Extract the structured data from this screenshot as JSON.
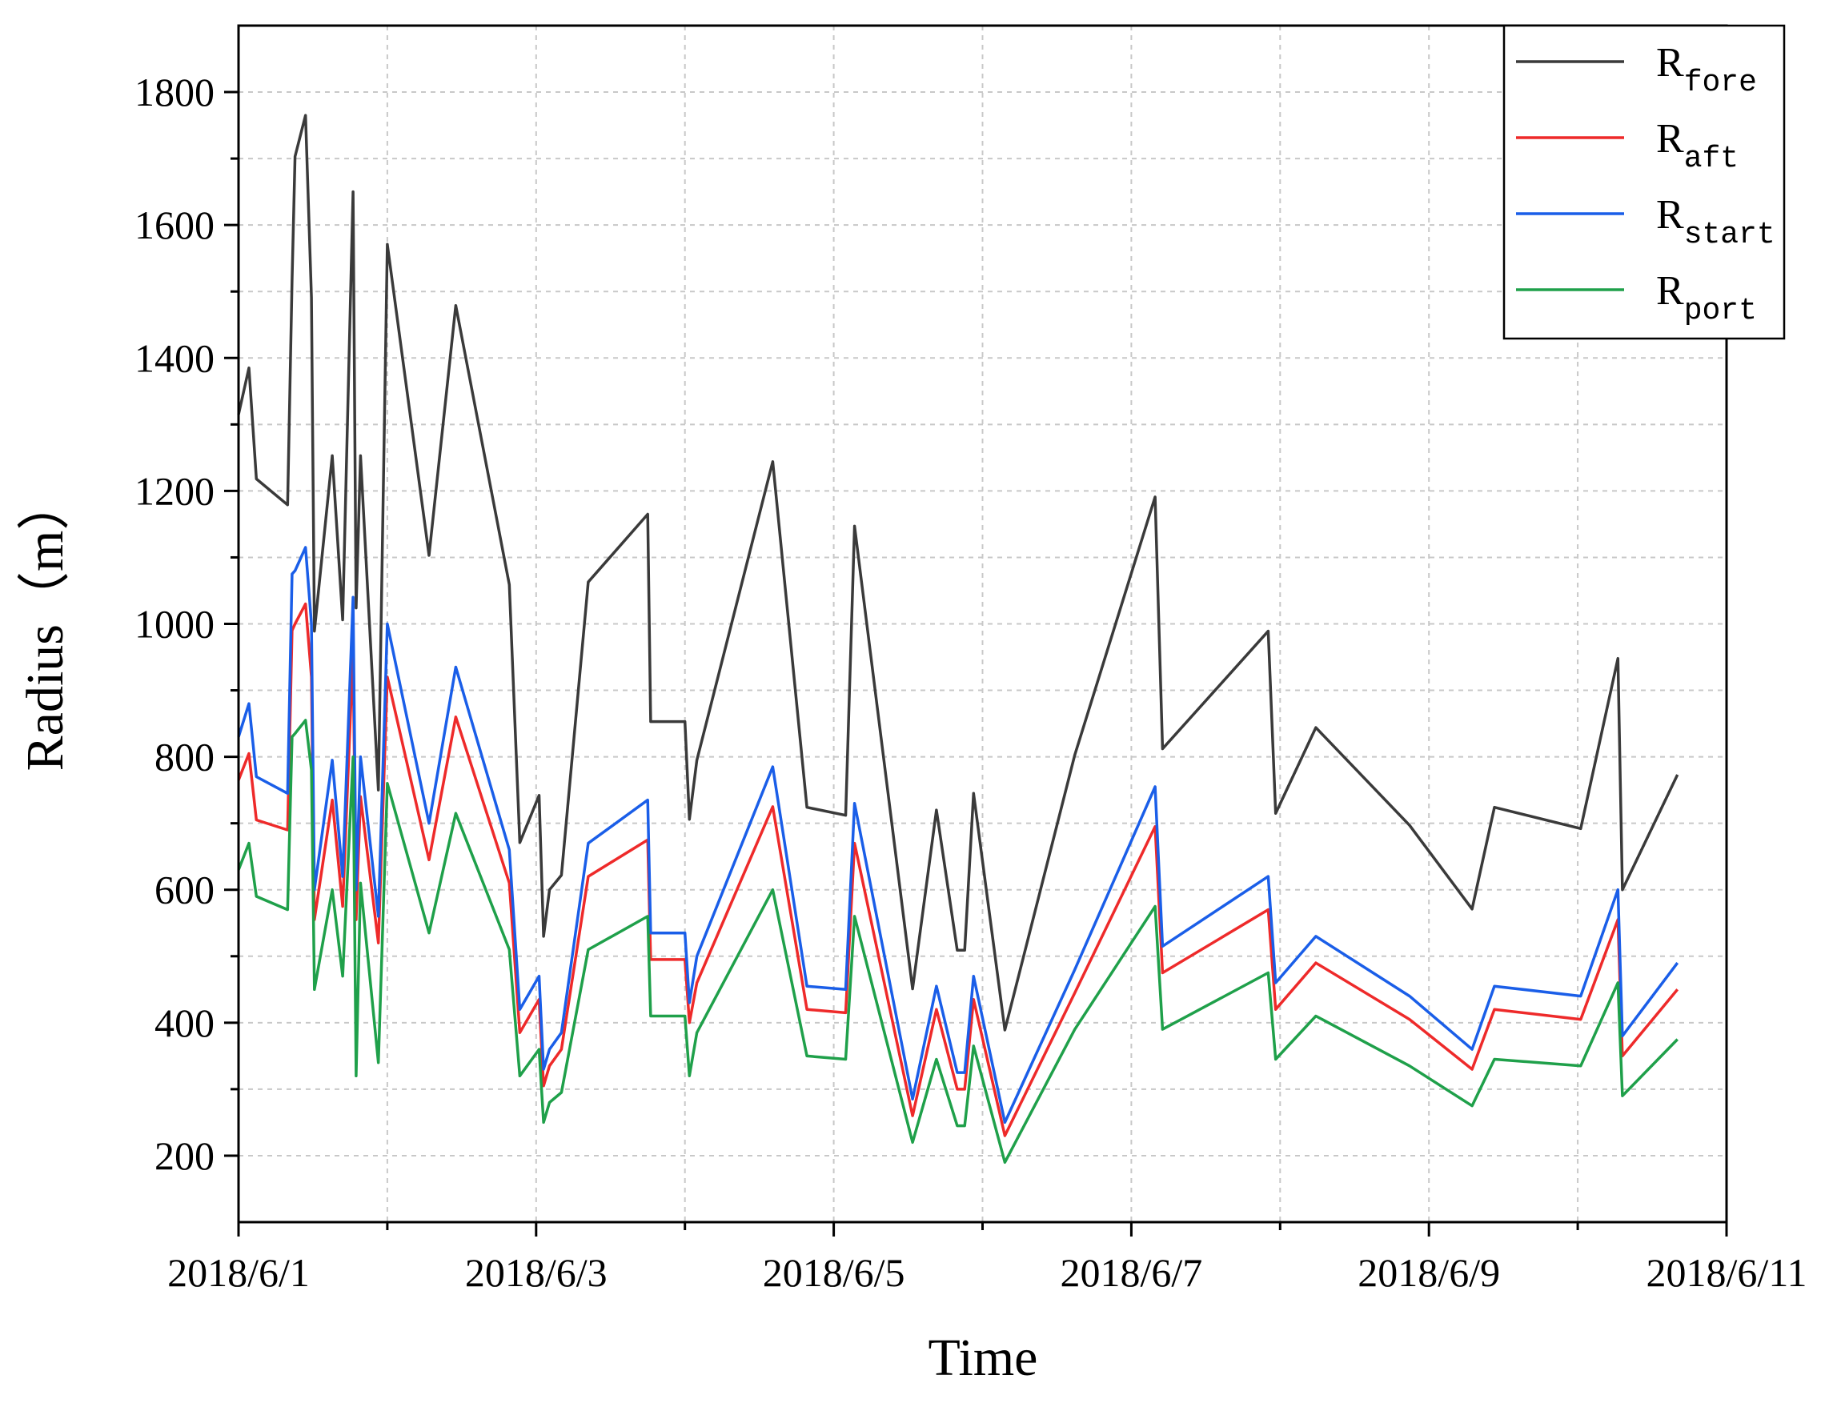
{
  "chart_data": {
    "type": "line",
    "xlabel": "Time",
    "ylabel": "Radius（m）",
    "xlim": [
      1,
      11
    ],
    "ylim": [
      100,
      1900
    ],
    "xticks": [
      {
        "value": 1,
        "label": "2018/6/1"
      },
      {
        "value": 3,
        "label": "2018/6/3"
      },
      {
        "value": 5,
        "label": "2018/6/5"
      },
      {
        "value": 7,
        "label": "2018/6/7"
      },
      {
        "value": 9,
        "label": "2018/6/9"
      },
      {
        "value": 11,
        "label": "2018/6/11"
      }
    ],
    "xminorticks": [
      2,
      4,
      6,
      8,
      10
    ],
    "yticks": [
      200,
      400,
      600,
      800,
      1000,
      1200,
      1400,
      1600,
      1800
    ],
    "yminorticks": [
      300,
      500,
      700,
      900,
      1100,
      1300,
      1500,
      1700
    ],
    "grid": true,
    "legend": "upper right",
    "x": [
      1.0,
      1.07,
      1.12,
      1.33,
      1.36,
      1.38,
      1.45,
      1.49,
      1.51,
      1.63,
      1.7,
      1.77,
      1.79,
      1.82,
      1.94,
      2.0,
      2.28,
      2.46,
      2.82,
      2.89,
      3.02,
      3.05,
      3.09,
      3.17,
      3.35,
      3.75,
      3.77,
      4.0,
      4.03,
      4.08,
      4.59,
      4.82,
      5.08,
      5.14,
      5.53,
      5.69,
      5.83,
      5.88,
      5.94,
      6.15,
      6.62,
      7.16,
      7.21,
      7.92,
      7.97,
      8.24,
      8.87,
      9.29,
      9.44,
      10.02,
      10.27,
      10.3,
      10.67
    ],
    "series": [
      {
        "name": "Rfore",
        "color": "#3a3a3a",
        "values": [
          1315,
          1385,
          1218,
          1179,
          1518,
          1703,
          1765,
          1491,
          989,
          1253,
          1006,
          1650,
          1024,
          1253,
          750,
          1571,
          1103,
          1479,
          1059,
          671,
          742,
          530,
          600,
          622,
          1063,
          1165,
          853,
          853,
          706,
          795,
          1244,
          724,
          712,
          1147,
          451,
          720,
          509,
          509,
          745,
          389,
          803,
          1191,
          812,
          989,
          715,
          844,
          697,
          571,
          724,
          692,
          948,
          600,
          773
        ]
      },
      {
        "name": "Raft",
        "color": "#ee2a2a",
        "values": [
          765,
          805,
          705,
          690,
          990,
          1000,
          1030,
          920,
          555,
          735,
          575,
          960,
          555,
          740,
          520,
          920,
          645,
          860,
          610,
          385,
          435,
          305,
          335,
          360,
          620,
          675,
          495,
          495,
          400,
          460,
          725,
          420,
          415,
          670,
          260,
          420,
          300,
          300,
          435,
          230,
          445,
          695,
          475,
          570,
          420,
          490,
          405,
          330,
          420,
          405,
          555,
          350,
          450
        ]
      },
      {
        "name": "Rstart",
        "color": "#1a5ee8",
        "values": [
          830,
          880,
          770,
          745,
          1075,
          1080,
          1115,
          1000,
          600,
          795,
          620,
          1040,
          600,
          800,
          560,
          1000,
          700,
          935,
          660,
          420,
          470,
          330,
          360,
          385,
          670,
          735,
          535,
          535,
          430,
          500,
          785,
          455,
          450,
          730,
          285,
          455,
          325,
          325,
          470,
          250,
          480,
          755,
          515,
          620,
          460,
          530,
          440,
          360,
          455,
          440,
          600,
          380,
          490
        ]
      },
      {
        "name": "Rport",
        "color": "#1fa04a",
        "values": [
          630,
          670,
          590,
          570,
          830,
          835,
          855,
          780,
          450,
          600,
          470,
          800,
          320,
          610,
          340,
          760,
          535,
          715,
          510,
          320,
          360,
          250,
          280,
          295,
          510,
          560,
          410,
          410,
          320,
          385,
          600,
          350,
          345,
          560,
          220,
          345,
          245,
          245,
          365,
          190,
          390,
          575,
          390,
          475,
          345,
          410,
          335,
          275,
          345,
          335,
          460,
          290,
          375
        ]
      }
    ]
  }
}
